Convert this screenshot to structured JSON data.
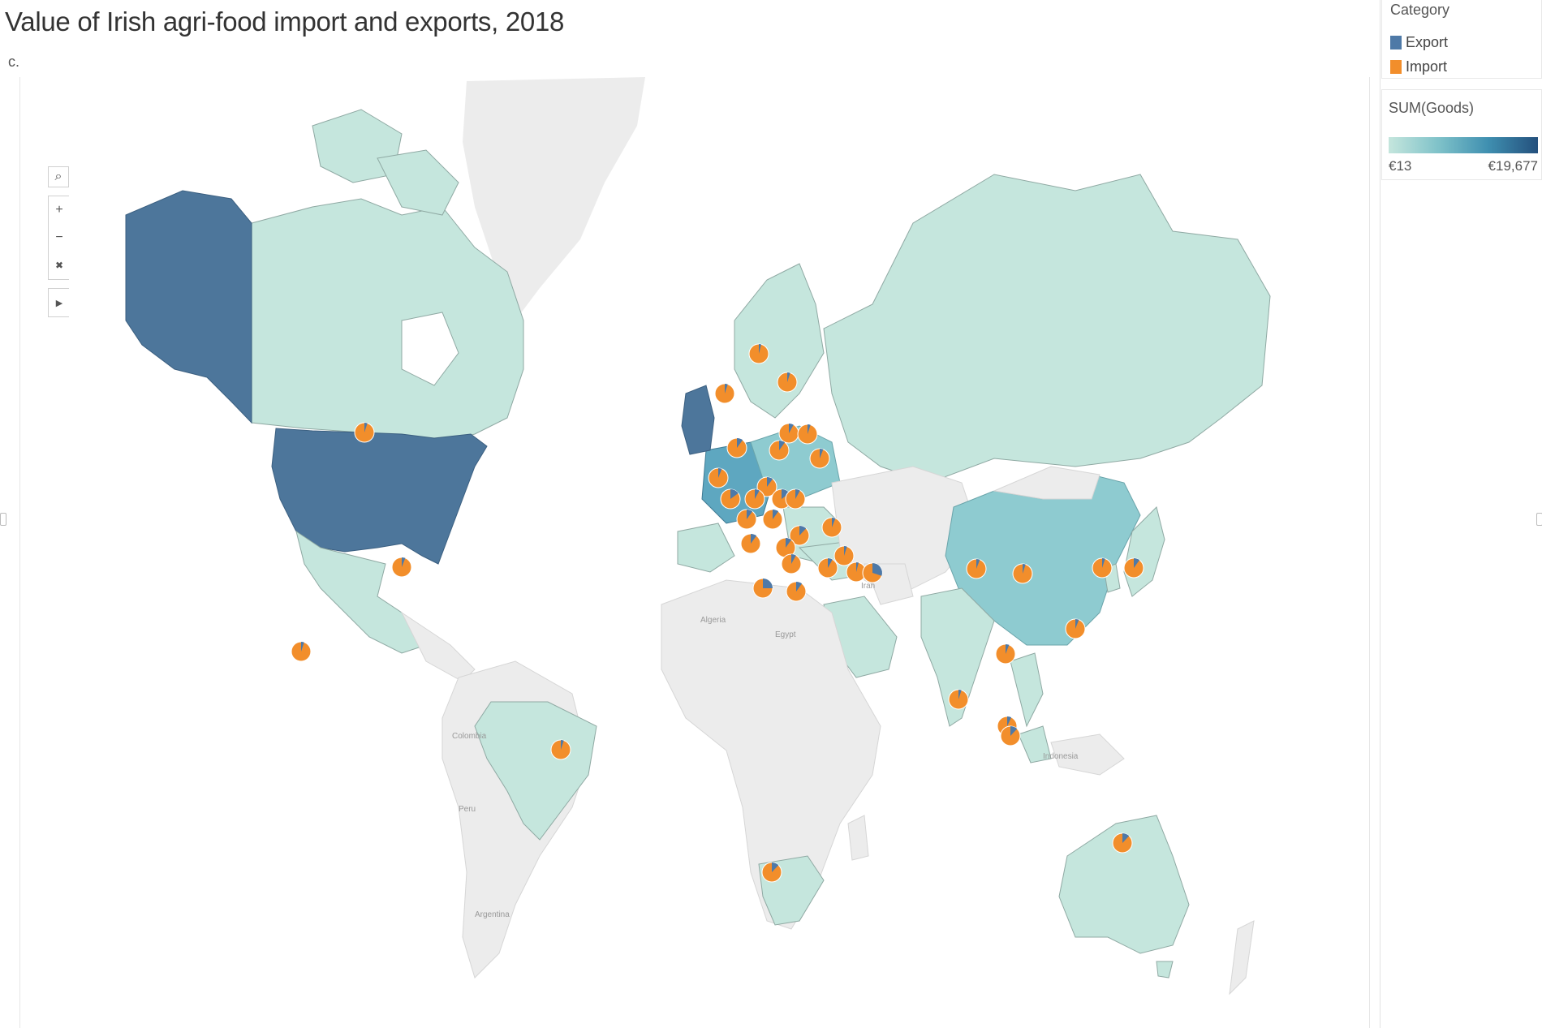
{
  "header": {
    "title": "Value of Irish agri-food import and exports, 2018",
    "subtitle": "c."
  },
  "toolbar": {
    "search_icon": "search-icon",
    "zoom_in_label": "+",
    "zoom_out_label": "−",
    "reset_icon": "reset-axes-icon",
    "expand_icon": "play-arrow-icon"
  },
  "legend_category": {
    "title": "Category",
    "items": [
      {
        "label": "Export",
        "color": "#4e79a7"
      },
      {
        "label": "Import",
        "color": "#f28e2b"
      }
    ]
  },
  "legend_scale": {
    "title": "SUM(Goods)",
    "min_label": "€13",
    "max_label": "€19,677",
    "min_color": "#c5e6dd",
    "max_color": "#24507d"
  },
  "map_labels": [
    "Algeria",
    "Egypt",
    "Iran",
    "Colombia",
    "Peru",
    "Argentina",
    "Indonesia"
  ],
  "colors": {
    "low": "#c5e6dd",
    "mid": "#8ecbd0",
    "high": "#5d8cb0",
    "top": "#4d769b",
    "nodata": "#ececec",
    "export": "#4e79a7",
    "import": "#f28e2b"
  },
  "chart_data": {
    "type": "map",
    "measure": "SUM(Goods)",
    "range": [
      13,
      19677
    ],
    "legend_placement": "top-right",
    "pie_category_colors": {
      "Export": "#4e79a7",
      "Import": "#f28e2b"
    },
    "countries_shaded": [
      {
        "name": "United States",
        "level": "high"
      },
      {
        "name": "Alaska (US)",
        "level": "high"
      },
      {
        "name": "United Kingdom",
        "level": "high"
      },
      {
        "name": "France",
        "level": "mid-high"
      },
      {
        "name": "China",
        "level": "mid"
      },
      {
        "name": "Canada",
        "level": "low"
      },
      {
        "name": "Russia",
        "level": "low"
      },
      {
        "name": "Brazil",
        "level": "low"
      },
      {
        "name": "Australia",
        "level": "low"
      },
      {
        "name": "Mexico",
        "level": "low"
      },
      {
        "name": "South Africa",
        "level": "low"
      },
      {
        "name": "Saudi Arabia",
        "level": "low"
      },
      {
        "name": "India",
        "level": "low"
      },
      {
        "name": "Japan",
        "level": "low"
      },
      {
        "name": "South Korea",
        "level": "low"
      }
    ]
  }
}
